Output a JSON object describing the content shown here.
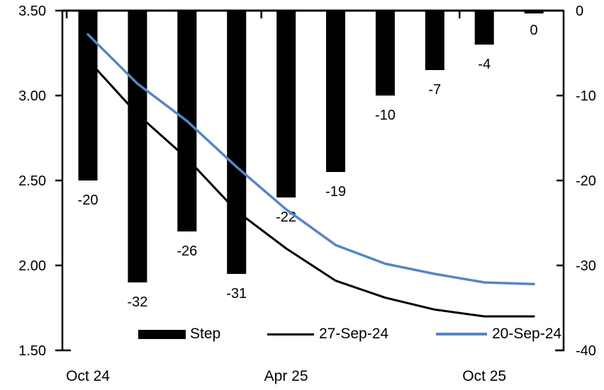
{
  "chart_data": {
    "type": "combo-bar-line",
    "background": "#ffffff",
    "grid": false,
    "n_categories": 10,
    "x_tick_labels": [
      {
        "label": "Oct 24",
        "category_index": 0
      },
      {
        "label": "Apr 25",
        "category_index": 4
      },
      {
        "label": "Oct 25",
        "category_index": 8
      }
    ],
    "bar_series": {
      "name": "Step",
      "axis": "right",
      "color": "#000000",
      "values": [
        -20,
        -32,
        -26,
        -31,
        -22,
        -19,
        -10,
        -7,
        -4,
        0
      ],
      "data_labels": [
        "-20",
        "-32",
        "-26",
        "-31",
        "-22",
        "-19",
        "-10",
        "-7",
        "-4",
        "0"
      ]
    },
    "line_series": [
      {
        "name": "27-Sep-24",
        "axis": "left",
        "color": "#000000",
        "values": [
          3.21,
          2.89,
          2.63,
          2.32,
          2.1,
          1.91,
          1.81,
          1.74,
          1.7,
          1.7
        ]
      },
      {
        "name": "20-Sep-24",
        "axis": "left",
        "color": "#5586C6",
        "values": [
          3.36,
          3.07,
          2.85,
          2.58,
          2.33,
          2.12,
          2.01,
          1.95,
          1.9,
          1.89
        ]
      }
    ],
    "left_axis": {
      "min": 1.5,
      "max": 3.5,
      "tick_labels": [
        "3.50",
        "3.00",
        "2.50",
        "2.00",
        "1.50"
      ]
    },
    "right_axis": {
      "min": -40,
      "max": 0,
      "tick_labels": [
        "0",
        "-10",
        "-20",
        "-30",
        "-40"
      ]
    },
    "legend": {
      "position": "bottom",
      "items": [
        {
          "label": "Step",
          "type": "bar",
          "color": "#000000"
        },
        {
          "label": "27-Sep-24",
          "type": "line",
          "color": "#000000"
        },
        {
          "label": "20-Sep-24",
          "type": "line",
          "color": "#5586C6"
        }
      ]
    }
  }
}
